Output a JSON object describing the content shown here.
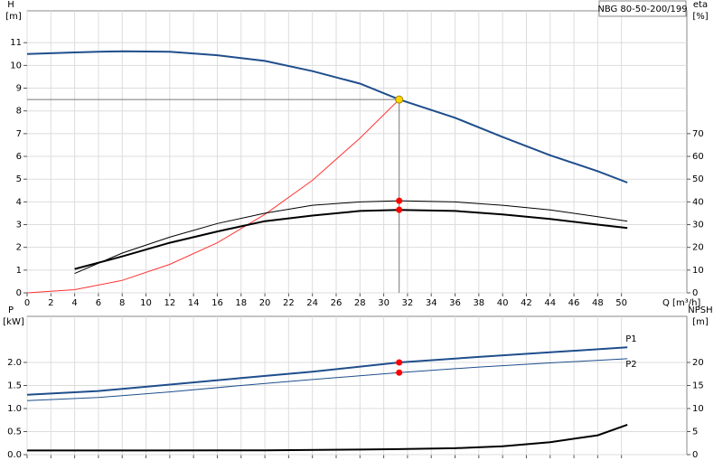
{
  "chart_data": [
    {
      "type": "line",
      "title": "NBG 80-50-200/199",
      "y_label": "H",
      "y_unit": "[m]",
      "y2_label": "eta",
      "y2_unit": "[%]",
      "x_label": "Q [m³/h]",
      "xlim": [
        0,
        55.5
      ],
      "xticks": [
        0,
        2,
        4,
        6,
        8,
        10,
        12,
        14,
        16,
        18,
        20,
        22,
        24,
        26,
        28,
        30,
        32,
        34,
        36,
        38,
        40,
        42,
        44,
        46,
        48,
        50
      ],
      "ylim": [
        0,
        12.4
      ],
      "yticks": [
        0,
        1,
        2,
        3,
        4,
        5,
        6,
        7,
        8,
        9,
        10,
        11
      ],
      "y2lim": [
        0,
        124
      ],
      "y2ticks": [
        0,
        10,
        20,
        30,
        40,
        50,
        60,
        70
      ],
      "grid": true,
      "operating_point": {
        "x": 31.3,
        "y": 8.5,
        "color": "#ffd700"
      },
      "series": [
        {
          "color": "#1f4e8c",
          "width": 2,
          "x": [
            0,
            4,
            6,
            8,
            12,
            16,
            20,
            24,
            28,
            31.3,
            36,
            40,
            44,
            48,
            50.5
          ],
          "values": [
            10.5,
            10.57,
            10.6,
            10.62,
            10.6,
            10.45,
            10.2,
            9.75,
            9.2,
            8.5,
            7.7,
            6.85,
            6.05,
            5.35,
            4.85
          ]
        },
        {
          "color": "#ff3333",
          "width": 1,
          "x": [
            0,
            4,
            8,
            12,
            16,
            20,
            24,
            28,
            31.3
          ],
          "values": [
            0,
            0.14,
            0.55,
            1.25,
            2.2,
            3.45,
            4.95,
            6.8,
            8.5
          ]
        },
        {
          "color": "#000000",
          "width": 1,
          "axis": "y2",
          "x": [
            4,
            8,
            12,
            16,
            20,
            24,
            28,
            31.3,
            36,
            40,
            44,
            48,
            50.5
          ],
          "values": [
            8.5,
            17.5,
            24.5,
            30.5,
            35,
            38.5,
            40,
            40.5,
            40,
            38.5,
            36.5,
            33.5,
            31.5
          ]
        },
        {
          "color": "#000000",
          "width": 2,
          "axis": "y2",
          "x": [
            4,
            8,
            12,
            16,
            20,
            24,
            28,
            31.3,
            36,
            40,
            44,
            48,
            50.5
          ],
          "values": [
            10.5,
            16,
            22,
            27,
            31.5,
            34,
            36,
            36.5,
            36,
            34.5,
            32.5,
            30,
            28.5
          ]
        },
        {
          "type": "marker",
          "color": "#ff0000",
          "axis": "y2",
          "x": [
            31.3,
            31.3
          ],
          "values": [
            40.5,
            36.5
          ]
        }
      ]
    },
    {
      "type": "line",
      "y_label": "P",
      "y_unit": "[kW]",
      "y2_label": "NPSH",
      "y2_unit": "[m]",
      "xlim": [
        0,
        55.5
      ],
      "xticks": [
        0,
        2,
        4,
        6,
        8,
        10,
        12,
        14,
        16,
        18,
        20,
        22,
        24,
        26,
        28,
        30,
        32,
        34,
        36,
        38,
        40,
        42,
        44,
        46,
        48,
        50
      ],
      "show_xtick_labels": false,
      "ylim": [
        0,
        3
      ],
      "yticks": [
        {
          "value": 0,
          "label": "0.0"
        },
        0.5,
        {
          "value": 1,
          "label": "1.0"
        },
        1.5,
        {
          "value": 2,
          "label": "2.0"
        }
      ],
      "y2lim": [
        0,
        30
      ],
      "y2ticks": [
        0,
        5,
        10,
        15,
        20
      ],
      "grid": true,
      "series": [
        {
          "name": "P1",
          "color": "#1f4e8c",
          "width": 2,
          "x": [
            0,
            6,
            12,
            18,
            24,
            31.3,
            38,
            44,
            50.5
          ],
          "values": [
            1.3,
            1.38,
            1.52,
            1.66,
            1.8,
            2.0,
            2.12,
            2.22,
            2.33
          ]
        },
        {
          "name": "P2",
          "color": "#1f4e8c",
          "width": 1,
          "x": [
            0,
            6,
            12,
            18,
            24,
            31.3,
            38,
            44,
            50.5
          ],
          "values": [
            1.17,
            1.24,
            1.36,
            1.5,
            1.63,
            1.78,
            1.9,
            1.99,
            2.08
          ]
        },
        {
          "color": "#000000",
          "width": 2,
          "axis": "y2",
          "x": [
            0,
            10,
            20,
            28,
            31.3,
            36,
            40,
            44,
            48,
            50.5
          ],
          "values": [
            0.9,
            0.9,
            0.95,
            1.1,
            1.2,
            1.4,
            1.8,
            2.7,
            4.2,
            6.5
          ]
        },
        {
          "type": "marker",
          "color": "#ff0000",
          "x": [
            31.3,
            31.3
          ],
          "values": [
            2.0,
            1.78
          ]
        }
      ]
    }
  ]
}
